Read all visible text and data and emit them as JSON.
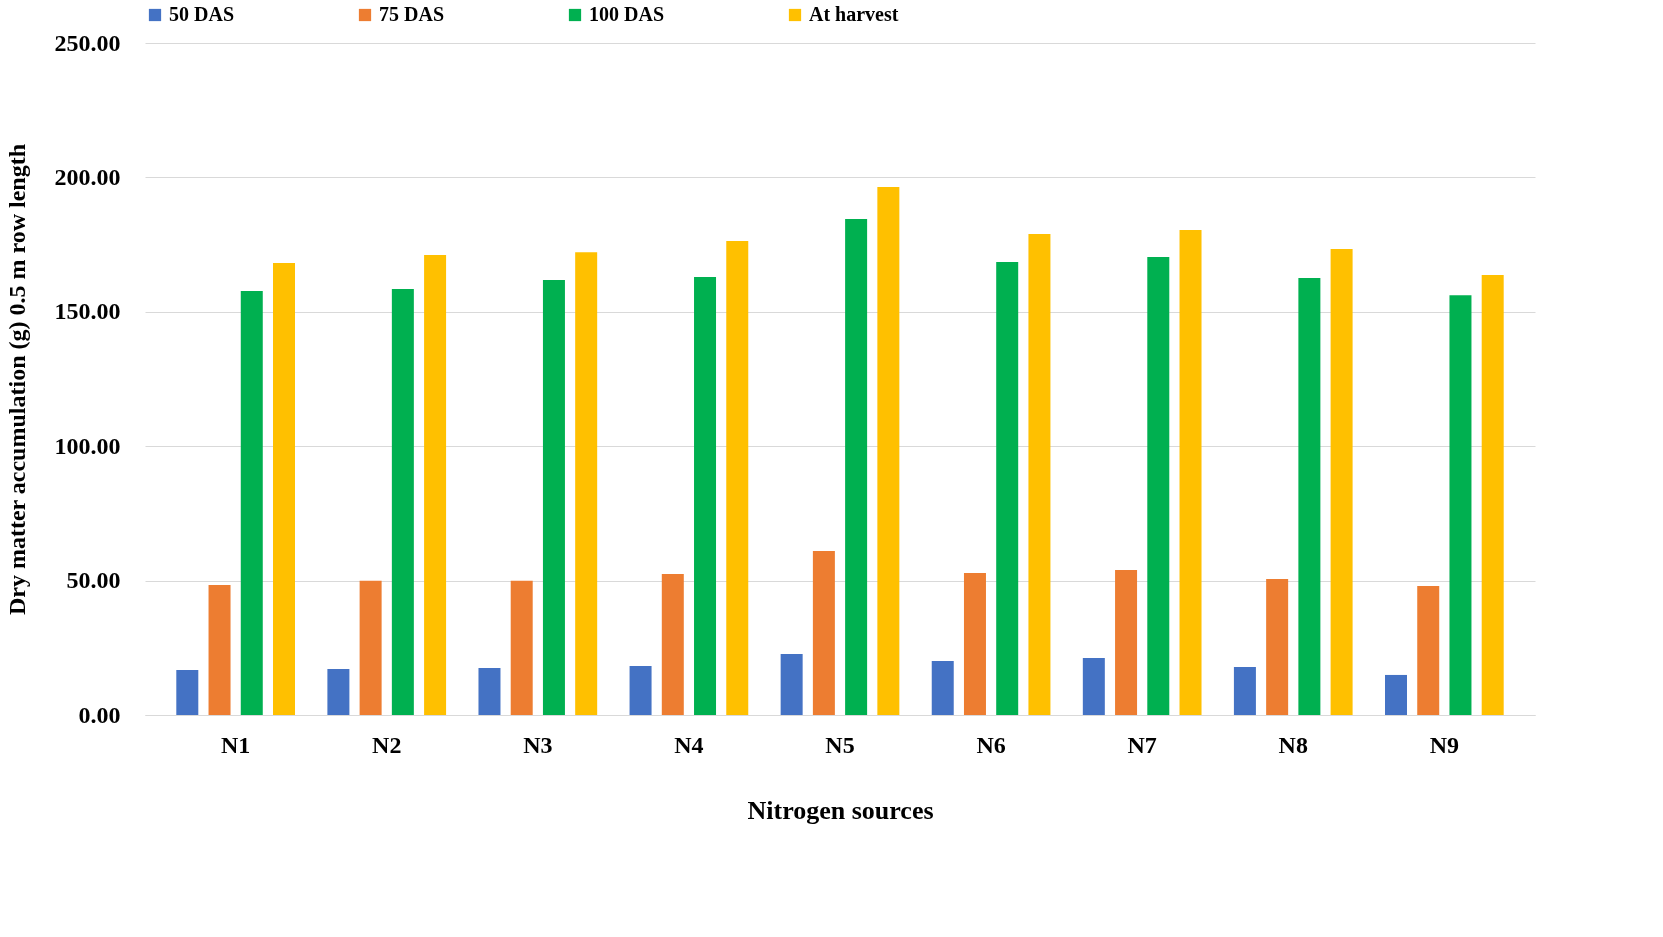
{
  "chart_data": {
    "type": "bar",
    "xlabel": "Nitrogen sources",
    "ylabel": "Dry matter accumulation (g) 0.5 m row length",
    "categories": [
      "N1",
      "N2",
      "N3",
      "N4",
      "N5",
      "N6",
      "N7",
      "N8",
      "N9"
    ],
    "series": [
      {
        "name": "50 DAS",
        "color": "#4472c4",
        "values": [
          16.7,
          17.1,
          17.5,
          18.2,
          22.7,
          20.1,
          21.2,
          17.9,
          14.9
        ]
      },
      {
        "name": "75 DAS",
        "color": "#ed7d31",
        "values": [
          48.4,
          49.9,
          49.9,
          52.5,
          61.0,
          52.8,
          53.9,
          50.6,
          48.0
        ]
      },
      {
        "name": "100 DAS",
        "color": "#00b050",
        "values": [
          157.7,
          158.5,
          161.8,
          162.9,
          184.5,
          168.5,
          170.4,
          162.6,
          156.2
        ]
      },
      {
        "name": "At harvest",
        "color": "#ffc000",
        "values": [
          168.2,
          171.1,
          172.2,
          176.3,
          196.4,
          178.9,
          180.4,
          173.4,
          163.7
        ]
      }
    ],
    "ylim": [
      0,
      250
    ],
    "yticks": [
      {
        "value": 0,
        "label": "0.00"
      },
      {
        "value": 50,
        "label": "50.00"
      },
      {
        "value": 100,
        "label": "100.00"
      },
      {
        "value": 150,
        "label": "150.00"
      },
      {
        "value": 200,
        "label": "200.00"
      },
      {
        "value": 250,
        "label": "250.00"
      }
    ],
    "grid": "y",
    "legend": "top"
  }
}
